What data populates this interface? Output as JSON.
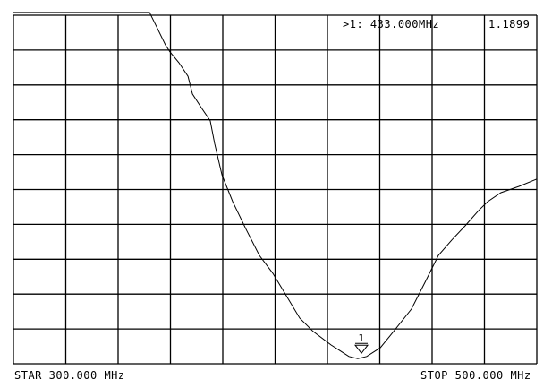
{
  "marker": {
    "label": ">1:",
    "frequency": "433.000",
    "unit": "MHz",
    "value": "1.1899",
    "number": "1"
  },
  "footer": {
    "start_label": "STAR",
    "start_value": "300.000",
    "start_unit": "MHz",
    "stop_label": "STOP",
    "stop_value": "500.000",
    "stop_unit": "MHz"
  },
  "chart_data": {
    "type": "line",
    "xlim": [
      300,
      500
    ],
    "x_unit": "MHz",
    "y_unit": "divisions",
    "ylim": [
      0,
      10
    ],
    "grid": true,
    "grid_divisions": {
      "x": 10,
      "y": 10
    },
    "marker_x": 433,
    "trace_color": "#000000",
    "x": [
      300,
      352,
      354.7,
      358.1,
      359.8,
      363.2,
      366.7,
      368.4,
      371.8,
      375.2,
      376.9,
      379.7,
      383.8,
      388.9,
      394.0,
      399.1,
      404.3,
      409.4,
      414.5,
      421.4,
      428.2,
      431.6,
      435.0,
      440.2,
      445.3,
      452.1,
      457.3,
      462.4,
      467.5,
      472.6,
      477.8,
      481.2,
      486.3,
      493.2,
      500
    ],
    "y": [
      10.08,
      10.08,
      9.67,
      9.15,
      8.95,
      8.64,
      8.25,
      7.74,
      7.35,
      6.97,
      6.32,
      5.42,
      4.65,
      3.86,
      3.11,
      2.6,
      1.95,
      1.31,
      0.93,
      0.54,
      0.21,
      0.15,
      0.21,
      0.46,
      0.93,
      1.57,
      2.34,
      3.11,
      3.55,
      3.96,
      4.4,
      4.65,
      4.91,
      5.09,
      5.3
    ]
  }
}
